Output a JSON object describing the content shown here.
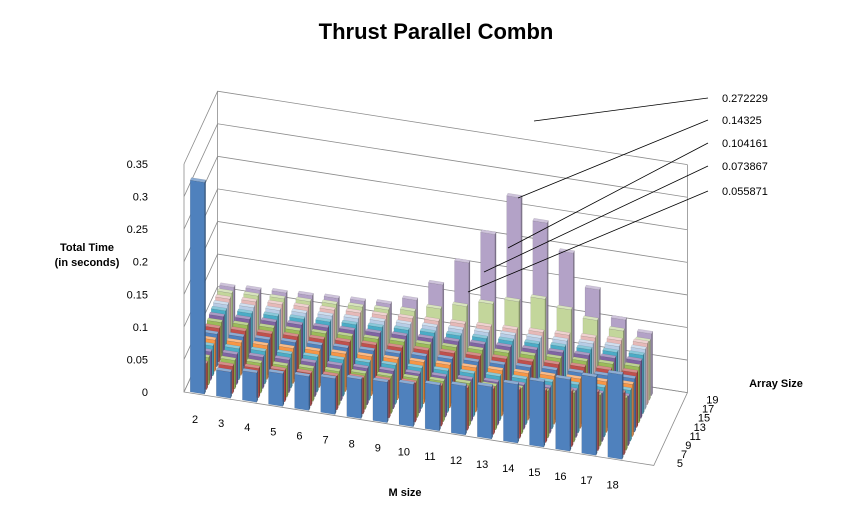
{
  "chart_data": {
    "type": "bar",
    "subtype": "3d-column",
    "title": "Thrust Parallel Combn",
    "ylabel": [
      "Total Time",
      "(in seconds)"
    ],
    "xlabel": "M size",
    "zlabel": "Array Size",
    "ylim": [
      0,
      0.35
    ],
    "yticks": [
      "0",
      "0.05",
      "0.1",
      "0.15",
      "0.2",
      "0.25",
      "0.3",
      "0.35"
    ],
    "m_sizes": [
      "2",
      "3",
      "4",
      "5",
      "6",
      "7",
      "8",
      "9",
      "10",
      "11",
      "12",
      "13",
      "14",
      "15",
      "16",
      "17",
      "18"
    ],
    "array_size_ticks": [
      "5",
      "7",
      "9",
      "11",
      "13",
      "15",
      "17",
      "19"
    ],
    "array_sizes": [
      5,
      6,
      7,
      8,
      9,
      10,
      11,
      12,
      13,
      14,
      15,
      16,
      17,
      18,
      19
    ],
    "grid": true,
    "values": [
      [
        0.325,
        0.04,
        0.045,
        0.05,
        0.052,
        0.055,
        0.06,
        0.062,
        0.065,
        0.07,
        0.075,
        0.08,
        0.09,
        0.1,
        0.11,
        0.12,
        0.13
      ],
      [
        0.04,
        0.042,
        0.045,
        0.048,
        0.05,
        0.052,
        0.055,
        0.058,
        0.06,
        0.062,
        0.065,
        0.07,
        0.075,
        0.08,
        0.085,
        0.09,
        0.095
      ],
      [
        0.042,
        0.044,
        0.046,
        0.048,
        0.05,
        0.052,
        0.055,
        0.057,
        0.06,
        0.062,
        0.065,
        0.067,
        0.07,
        0.072,
        0.075,
        0.078,
        0.08
      ],
      [
        0.044,
        0.046,
        0.048,
        0.05,
        0.052,
        0.054,
        0.056,
        0.058,
        0.06,
        0.062,
        0.064,
        0.066,
        0.068,
        0.07,
        0.072,
        0.074,
        0.076
      ],
      [
        0.046,
        0.048,
        0.05,
        0.052,
        0.054,
        0.056,
        0.058,
        0.06,
        0.062,
        0.064,
        0.066,
        0.068,
        0.07,
        0.072,
        0.074,
        0.076,
        0.078
      ],
      [
        0.048,
        0.05,
        0.052,
        0.054,
        0.056,
        0.058,
        0.06,
        0.062,
        0.064,
        0.066,
        0.068,
        0.07,
        0.072,
        0.074,
        0.076,
        0.078,
        0.08
      ],
      [
        0.05,
        0.052,
        0.054,
        0.056,
        0.058,
        0.06,
        0.062,
        0.064,
        0.066,
        0.068,
        0.07,
        0.072,
        0.074,
        0.076,
        0.078,
        0.08,
        0.082
      ],
      [
        0.052,
        0.054,
        0.056,
        0.058,
        0.06,
        0.062,
        0.064,
        0.066,
        0.068,
        0.07,
        0.072,
        0.074,
        0.076,
        0.078,
        0.08,
        0.082,
        0.084
      ],
      [
        0.054,
        0.056,
        0.058,
        0.06,
        0.062,
        0.064,
        0.066,
        0.068,
        0.07,
        0.072,
        0.074,
        0.076,
        0.078,
        0.08,
        0.082,
        0.084,
        0.086
      ],
      [
        0.056,
        0.058,
        0.06,
        0.062,
        0.064,
        0.066,
        0.068,
        0.07,
        0.072,
        0.074,
        0.076,
        0.078,
        0.08,
        0.082,
        0.084,
        0.086,
        0.088
      ],
      [
        0.058,
        0.06,
        0.062,
        0.064,
        0.066,
        0.068,
        0.07,
        0.072,
        0.074,
        0.076,
        0.078,
        0.08,
        0.082,
        0.084,
        0.086,
        0.088,
        0.09
      ],
      [
        0.06,
        0.062,
        0.064,
        0.066,
        0.068,
        0.07,
        0.072,
        0.074,
        0.076,
        0.078,
        0.08,
        0.082,
        0.084,
        0.086,
        0.088,
        0.09,
        0.092
      ],
      [
        0.062,
        0.064,
        0.066,
        0.068,
        0.07,
        0.072,
        0.074,
        0.076,
        0.078,
        0.08,
        0.082,
        0.084,
        0.086,
        0.088,
        0.09,
        0.092,
        0.094
      ],
      [
        0.064,
        0.066,
        0.068,
        0.07,
        0.072,
        0.074,
        0.076,
        0.08,
        0.09,
        0.1,
        0.11,
        0.12,
        0.13,
        0.12,
        0.11,
        0.1,
        0.09
      ],
      [
        0.066,
        0.068,
        0.07,
        0.072,
        0.074,
        0.076,
        0.078,
        0.09,
        0.12,
        0.16,
        0.21,
        0.272229,
        0.24,
        0.2,
        0.15,
        0.11,
        0.095
      ]
    ],
    "callouts": [
      "0.272229",
      "0.14325",
      "0.104161",
      "0.073867",
      "0.055871"
    ],
    "series_colors": [
      "#4f81bd",
      "#c0504d",
      "#9bbb59",
      "#8064a2",
      "#4bacc6",
      "#f79646"
    ],
    "back_row_colors": [
      "#b3a2c7",
      "#c3d69b",
      "#e6b9b8",
      "#b7cde6"
    ]
  }
}
